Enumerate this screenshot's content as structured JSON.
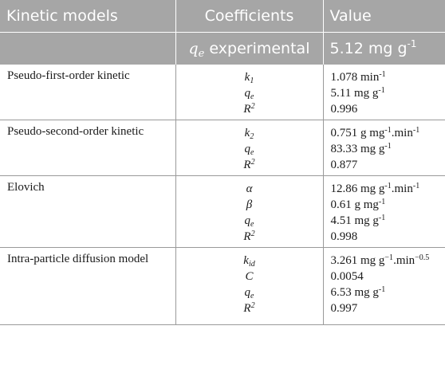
{
  "header": {
    "col_model": "Kinetic models",
    "col_coefficients": "Coefficients",
    "col_value": "Value",
    "qe_symbol": "q",
    "qe_subscript": "e",
    "qe_label": "experimental",
    "qe_value": "5.12 mg g",
    "qe_value_exp": "-1"
  },
  "rows": [
    {
      "model": "Pseudo-first-order kinetic",
      "coef": [
        {
          "base": "k",
          "sub": "1",
          "sup": ""
        },
        {
          "base": "q",
          "sub": "e",
          "sup": ""
        },
        {
          "base": "R",
          "sub": "",
          "sup": "2"
        }
      ],
      "values": [
        {
          "main": "1.078 min",
          "sup": "-1",
          "tail": ""
        },
        {
          "main": "5.11 mg g",
          "sup": "-1",
          "tail": ""
        },
        {
          "main": "0.996",
          "sup": "",
          "tail": ""
        }
      ]
    },
    {
      "model": "Pseudo-second-order kinetic",
      "coef": [
        {
          "base": "k",
          "sub": "2",
          "sup": ""
        },
        {
          "base": "q",
          "sub": "e",
          "sup": ""
        },
        {
          "base": "R",
          "sub": "",
          "sup": "2"
        }
      ],
      "values": [
        {
          "main": "0.751 g mg",
          "sup": "-1",
          "tail": ".min",
          "sup2": "-1"
        },
        {
          "main": "83.33 mg g",
          "sup": "-1",
          "tail": ""
        },
        {
          "main": "0.877",
          "sup": "",
          "tail": ""
        }
      ]
    },
    {
      "model": "Elovich",
      "coef": [
        {
          "base": "α",
          "sub": "",
          "sup": ""
        },
        {
          "base": "β",
          "sub": "",
          "sup": ""
        },
        {
          "base": "q",
          "sub": "e",
          "sup": ""
        },
        {
          "base": "R",
          "sub": "",
          "sup": "2"
        }
      ],
      "values": [
        {
          "main": "12.86 mg g",
          "sup": "-1",
          "tail": ".min",
          "sup2": "-1"
        },
        {
          "main": "0.61 g mg",
          "sup": "-1",
          "tail": ""
        },
        {
          "main": "4.51 mg g",
          "sup": "-1",
          "tail": ""
        },
        {
          "main": "0.998",
          "sup": "",
          "tail": ""
        }
      ]
    },
    {
      "model": "Intra-particle diffusion model",
      "coef": [
        {
          "base": "k",
          "sub": "id",
          "sup": ""
        },
        {
          "base": "C",
          "sub": "",
          "sup": ""
        },
        {
          "base": "q",
          "sub": "e",
          "sup": ""
        },
        {
          "base": "R",
          "sub": "",
          "sup": "2"
        }
      ],
      "values": [
        {
          "main": "3.261 mg g",
          "sup": "−1",
          "tail": ".min",
          "sup2": "−0.5"
        },
        {
          "main": "0.0054",
          "sup": "",
          "tail": ""
        },
        {
          "main": "6.53 mg g",
          "sup": "-1",
          "tail": ""
        },
        {
          "main": "0.997",
          "sup": "",
          "tail": ""
        }
      ]
    }
  ]
}
